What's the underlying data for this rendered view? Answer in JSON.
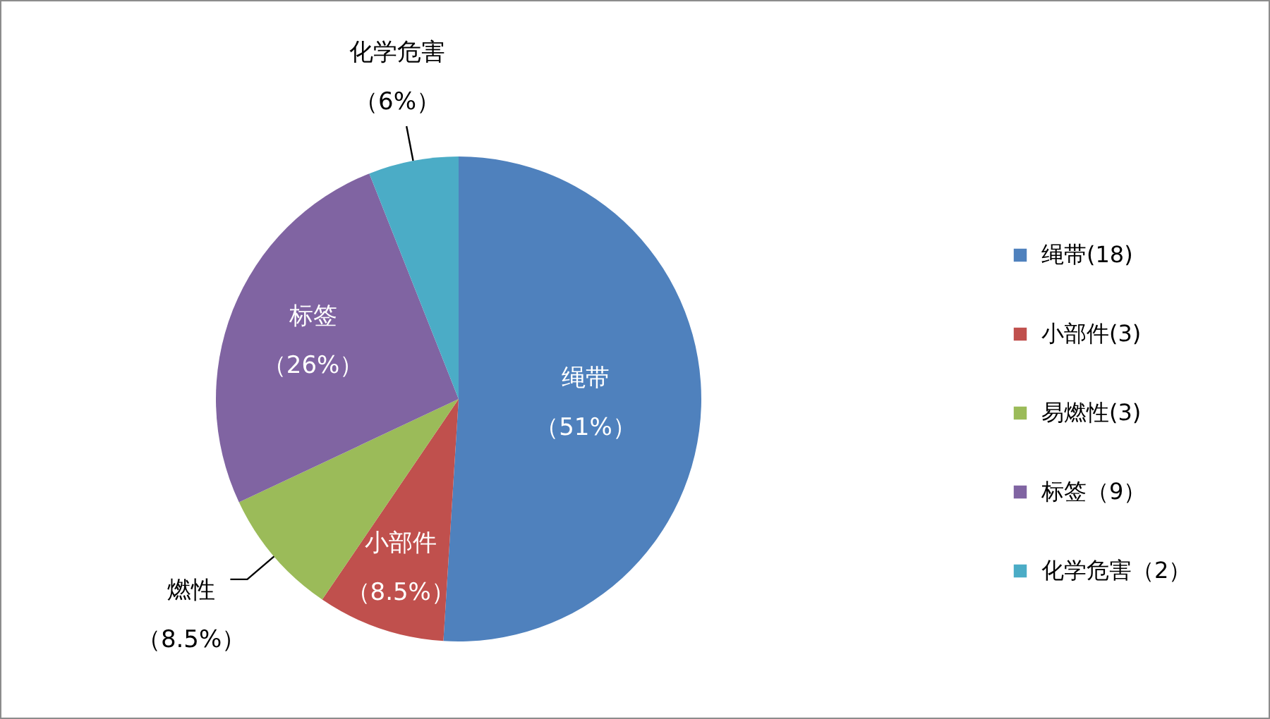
{
  "chart_data": {
    "type": "pie",
    "categories": [
      "绳带(18)",
      "小部件(3)",
      "易燃性(3)",
      "标签（9）",
      "化学危害（2）"
    ],
    "values": [
      51,
      8.5,
      8.5,
      26,
      6
    ],
    "colors": [
      "#4f81bd",
      "#c0504d",
      "#9bbb59",
      "#8064a2",
      "#4bacc6"
    ],
    "value_labels": [
      "绳带（51%）",
      "小部件（8.5%）",
      "燃性（8.5%）",
      "标签（26%）",
      "化学危害（6%）"
    ],
    "legend": "right"
  }
}
